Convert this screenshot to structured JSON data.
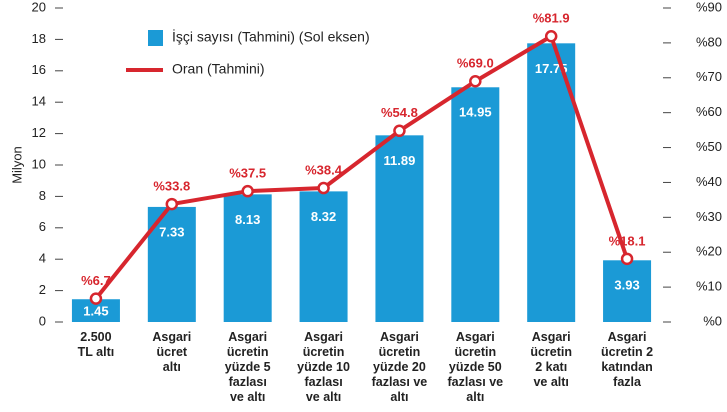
{
  "chart_data": {
    "type": "bar",
    "y_label": "Milyon",
    "categories": [
      "2.500\nTL altı",
      "Asgari\nücret\naltı",
      "Asgari\nücretin\nyüzde 5\nfazlası\nve altı",
      "Asgari\nücretin\nyüzde 10\nfazlası\nve altı",
      "Asgari\nücretin\nyüzde 20\nfazlası ve\naltı",
      "Asgari\nücretin\nyüzde 50\nfazlası ve\naltı",
      "Asgari\nücretin\n2 katı\nve altı",
      "Asgari\nücretin 2\nkatından\nfazla"
    ],
    "series": [
      {
        "name": "İşçi sayısı (Tahmini) (Sol eksen)",
        "type": "bar",
        "color": "#1b9ad6",
        "values": [
          1.45,
          7.33,
          8.13,
          8.32,
          11.89,
          14.95,
          17.75,
          3.93
        ]
      },
      {
        "name": "Oran (Tahmini)",
        "type": "line",
        "axis": "y2",
        "color": "#d7262e",
        "values": [
          6.7,
          33.8,
          37.5,
          38.4,
          54.8,
          69.0,
          81.9,
          18.1
        ],
        "value_labels": [
          "%6.7",
          "%33.8",
          "%37.5",
          "%38.4",
          "%54.8",
          "%69.0",
          "%81.9",
          "%18.1"
        ]
      }
    ],
    "ylim": [
      0,
      20
    ],
    "yticks": [
      0,
      2,
      4,
      6,
      8,
      10,
      12,
      14,
      16,
      18,
      20
    ],
    "y2lim": [
      0,
      90
    ],
    "y2ticks": [
      {
        "value": 0,
        "label": "%0"
      },
      {
        "value": 10,
        "label": "%10"
      },
      {
        "value": 20,
        "label": "%20"
      },
      {
        "value": 30,
        "label": "%30"
      },
      {
        "value": 40,
        "label": "%40"
      },
      {
        "value": 50,
        "label": "%50"
      },
      {
        "value": 60,
        "label": "%60"
      },
      {
        "value": 70,
        "label": "%70"
      },
      {
        "value": 80,
        "label": "%80"
      },
      {
        "value": 90,
        "label": "%90"
      }
    ]
  }
}
